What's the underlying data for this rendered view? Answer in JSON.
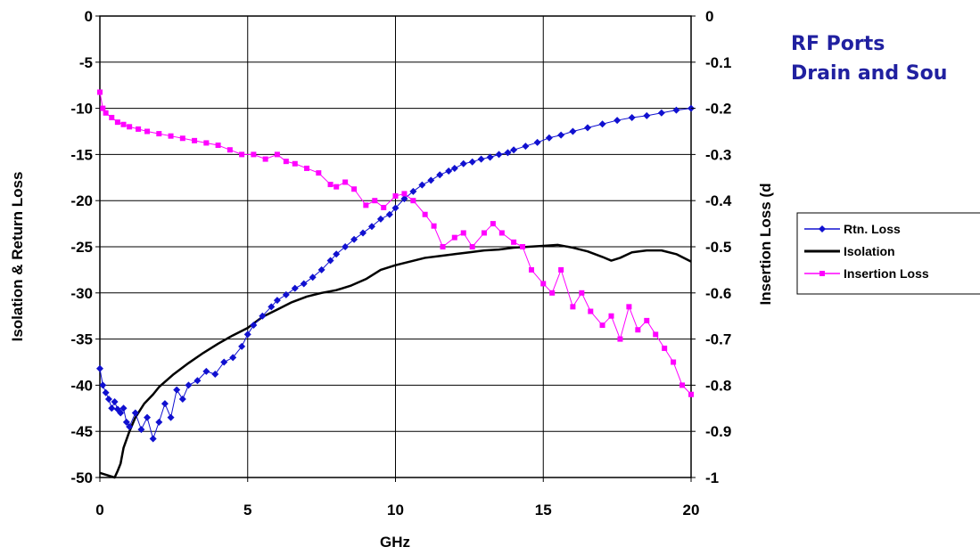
{
  "chart_data": {
    "type": "line",
    "heading_lines": [
      "RF Ports",
      "Drain and Sou"
    ],
    "xlabel": "GHz",
    "ylabel_left": "Isolation & Return Loss",
    "ylabel_right": "Insertion Loss (d",
    "xlim": [
      0,
      20
    ],
    "ylim_left": [
      -50,
      0
    ],
    "ylim_right": [
      -1,
      0
    ],
    "x_ticks": [
      "0",
      "5",
      "10",
      "15",
      "20"
    ],
    "y_ticks_left": [
      "0",
      "-5",
      "-10",
      "-15",
      "-20",
      "-25",
      "-30",
      "-35",
      "-40",
      "-45",
      "-50"
    ],
    "y_ticks_right": [
      "0",
      "-0.1",
      "-0.2",
      "-0.3",
      "-0.4",
      "-0.5",
      "-0.6",
      "-0.7",
      "-0.8",
      "-0.9",
      "-1"
    ],
    "grid": true,
    "legend_position": "right",
    "series": [
      {
        "name": "Rtn. Loss",
        "axis": "left",
        "color": "#1010d0",
        "marker": "diamond",
        "x": [
          0,
          0.1,
          0.2,
          0.3,
          0.4,
          0.5,
          0.6,
          0.7,
          0.8,
          0.9,
          1.0,
          1.2,
          1.4,
          1.6,
          1.8,
          2.0,
          2.2,
          2.4,
          2.6,
          2.8,
          3.0,
          3.3,
          3.6,
          3.9,
          4.2,
          4.5,
          4.8,
          5.0,
          5.2,
          5.5,
          5.8,
          6.0,
          6.3,
          6.6,
          6.9,
          7.2,
          7.5,
          7.8,
          8.0,
          8.3,
          8.6,
          8.9,
          9.2,
          9.5,
          9.8,
          10.0,
          10.3,
          10.6,
          10.9,
          11.2,
          11.5,
          11.8,
          12.0,
          12.3,
          12.6,
          12.9,
          13.2,
          13.5,
          13.8,
          14.0,
          14.4,
          14.8,
          15.2,
          15.6,
          16.0,
          16.5,
          17.0,
          17.5,
          18.0,
          18.5,
          19.0,
          19.5,
          20.0
        ],
        "values": [
          -38.2,
          -40.0,
          -40.8,
          -41.5,
          -42.5,
          -41.8,
          -42.6,
          -43.0,
          -42.5,
          -44.0,
          -44.5,
          -43.0,
          -44.8,
          -43.5,
          -45.8,
          -44.0,
          -42.0,
          -43.5,
          -40.5,
          -41.5,
          -40.0,
          -39.5,
          -38.5,
          -38.8,
          -37.5,
          -37.0,
          -35.8,
          -34.5,
          -33.5,
          -32.5,
          -31.5,
          -30.8,
          -30.2,
          -29.5,
          -29.0,
          -28.3,
          -27.5,
          -26.5,
          -25.8,
          -25.0,
          -24.2,
          -23.5,
          -22.8,
          -22.0,
          -21.5,
          -20.8,
          -19.8,
          -19.0,
          -18.3,
          -17.8,
          -17.2,
          -16.8,
          -16.5,
          -16.0,
          -15.8,
          -15.5,
          -15.3,
          -15.0,
          -14.8,
          -14.5,
          -14.1,
          -13.7,
          -13.2,
          -12.9,
          -12.5,
          -12.1,
          -11.7,
          -11.3,
          -11.0,
          -10.8,
          -10.5,
          -10.2,
          -10.0
        ]
      },
      {
        "name": "Isolation",
        "axis": "left",
        "color": "#000000",
        "marker": "none",
        "x": [
          0,
          0.3,
          0.5,
          0.6,
          0.7,
          0.8,
          1.0,
          1.2,
          1.5,
          1.8,
          2.0,
          2.5,
          3.0,
          3.5,
          4.0,
          4.5,
          5.0,
          5.5,
          6.0,
          6.5,
          7.0,
          7.5,
          8.0,
          8.5,
          9.0,
          9.5,
          10.0,
          10.5,
          11.0,
          11.5,
          12.0,
          12.5,
          13.0,
          13.5,
          14.0,
          14.5,
          15.0,
          15.5,
          16.0,
          16.5,
          17.0,
          17.3,
          17.6,
          18.0,
          18.5,
          19.0,
          19.5,
          20.0
        ],
        "values": [
          -49.5,
          -49.8,
          -50.0,
          -49.3,
          -48.5,
          -46.8,
          -45.0,
          -43.5,
          -42.0,
          -41.0,
          -40.2,
          -38.8,
          -37.6,
          -36.5,
          -35.5,
          -34.6,
          -33.8,
          -32.6,
          -31.8,
          -31.0,
          -30.4,
          -30.0,
          -29.7,
          -29.2,
          -28.5,
          -27.5,
          -27.0,
          -26.6,
          -26.2,
          -26.0,
          -25.8,
          -25.6,
          -25.4,
          -25.3,
          -25.1,
          -25.0,
          -24.9,
          -24.8,
          -25.1,
          -25.5,
          -26.1,
          -26.5,
          -26.2,
          -25.6,
          -25.4,
          -25.4,
          -25.8,
          -26.6
        ]
      },
      {
        "name": "Insertion Loss",
        "axis": "right",
        "color": "#ff00ff",
        "marker": "square",
        "x": [
          0,
          0.1,
          0.2,
          0.4,
          0.6,
          0.8,
          1.0,
          1.3,
          1.6,
          2.0,
          2.4,
          2.8,
          3.2,
          3.6,
          4.0,
          4.4,
          4.8,
          5.2,
          5.6,
          6.0,
          6.3,
          6.6,
          7.0,
          7.4,
          7.8,
          8.0,
          8.3,
          8.6,
          9.0,
          9.3,
          9.6,
          10.0,
          10.3,
          10.6,
          11.0,
          11.3,
          11.6,
          12.0,
          12.3,
          12.6,
          13.0,
          13.3,
          13.6,
          14.0,
          14.3,
          14.6,
          15.0,
          15.3,
          15.6,
          16.0,
          16.3,
          16.6,
          17.0,
          17.3,
          17.6,
          17.9,
          18.2,
          18.5,
          18.8,
          19.1,
          19.4,
          19.7,
          20.0
        ],
        "values": [
          -0.165,
          -0.2,
          -0.21,
          -0.22,
          -0.23,
          -0.235,
          -0.24,
          -0.245,
          -0.25,
          -0.255,
          -0.26,
          -0.265,
          -0.27,
          -0.275,
          -0.28,
          -0.29,
          -0.3,
          -0.3,
          -0.31,
          -0.3,
          -0.315,
          -0.32,
          -0.33,
          -0.34,
          -0.365,
          -0.37,
          -0.36,
          -0.375,
          -0.41,
          -0.4,
          -0.415,
          -0.39,
          -0.385,
          -0.4,
          -0.43,
          -0.455,
          -0.5,
          -0.48,
          -0.47,
          -0.5,
          -0.47,
          -0.45,
          -0.47,
          -0.49,
          -0.5,
          -0.55,
          -0.58,
          -0.6,
          -0.55,
          -0.63,
          -0.6,
          -0.64,
          -0.67,
          -0.65,
          -0.7,
          -0.63,
          -0.68,
          -0.66,
          -0.69,
          -0.72,
          -0.75,
          -0.8,
          -0.82
        ]
      }
    ]
  }
}
